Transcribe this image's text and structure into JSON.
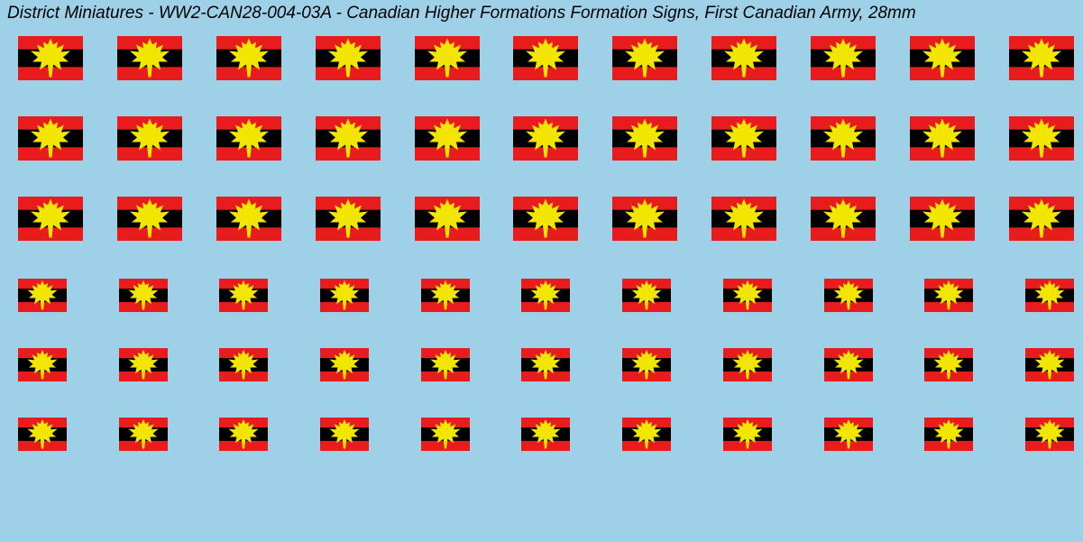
{
  "title": "District Miniatures - WW2-CAN28-004-03A - Canadian Higher Formations Formation Signs, First Canadian Army, 28mm",
  "background_color": "#9ed1e8",
  "title_color": "#000000",
  "title_fontsize": 19,
  "decal_colors": {
    "rect_outer": "#e81c1c",
    "stripe": "#000000",
    "leaf": "#f2e500"
  },
  "grid": {
    "columns": 11,
    "rows": [
      {
        "decal_width": 72,
        "decal_height": 49,
        "row_gap_after": 40
      },
      {
        "decal_width": 72,
        "decal_height": 49,
        "row_gap_after": 40
      },
      {
        "decal_width": 72,
        "decal_height": 49,
        "row_gap_after": 42
      },
      {
        "decal_width": 54,
        "decal_height": 37,
        "row_gap_after": 40
      },
      {
        "decal_width": 54,
        "decal_height": 37,
        "row_gap_after": 40
      },
      {
        "decal_width": 54,
        "decal_height": 37,
        "row_gap_after": 0
      }
    ]
  }
}
